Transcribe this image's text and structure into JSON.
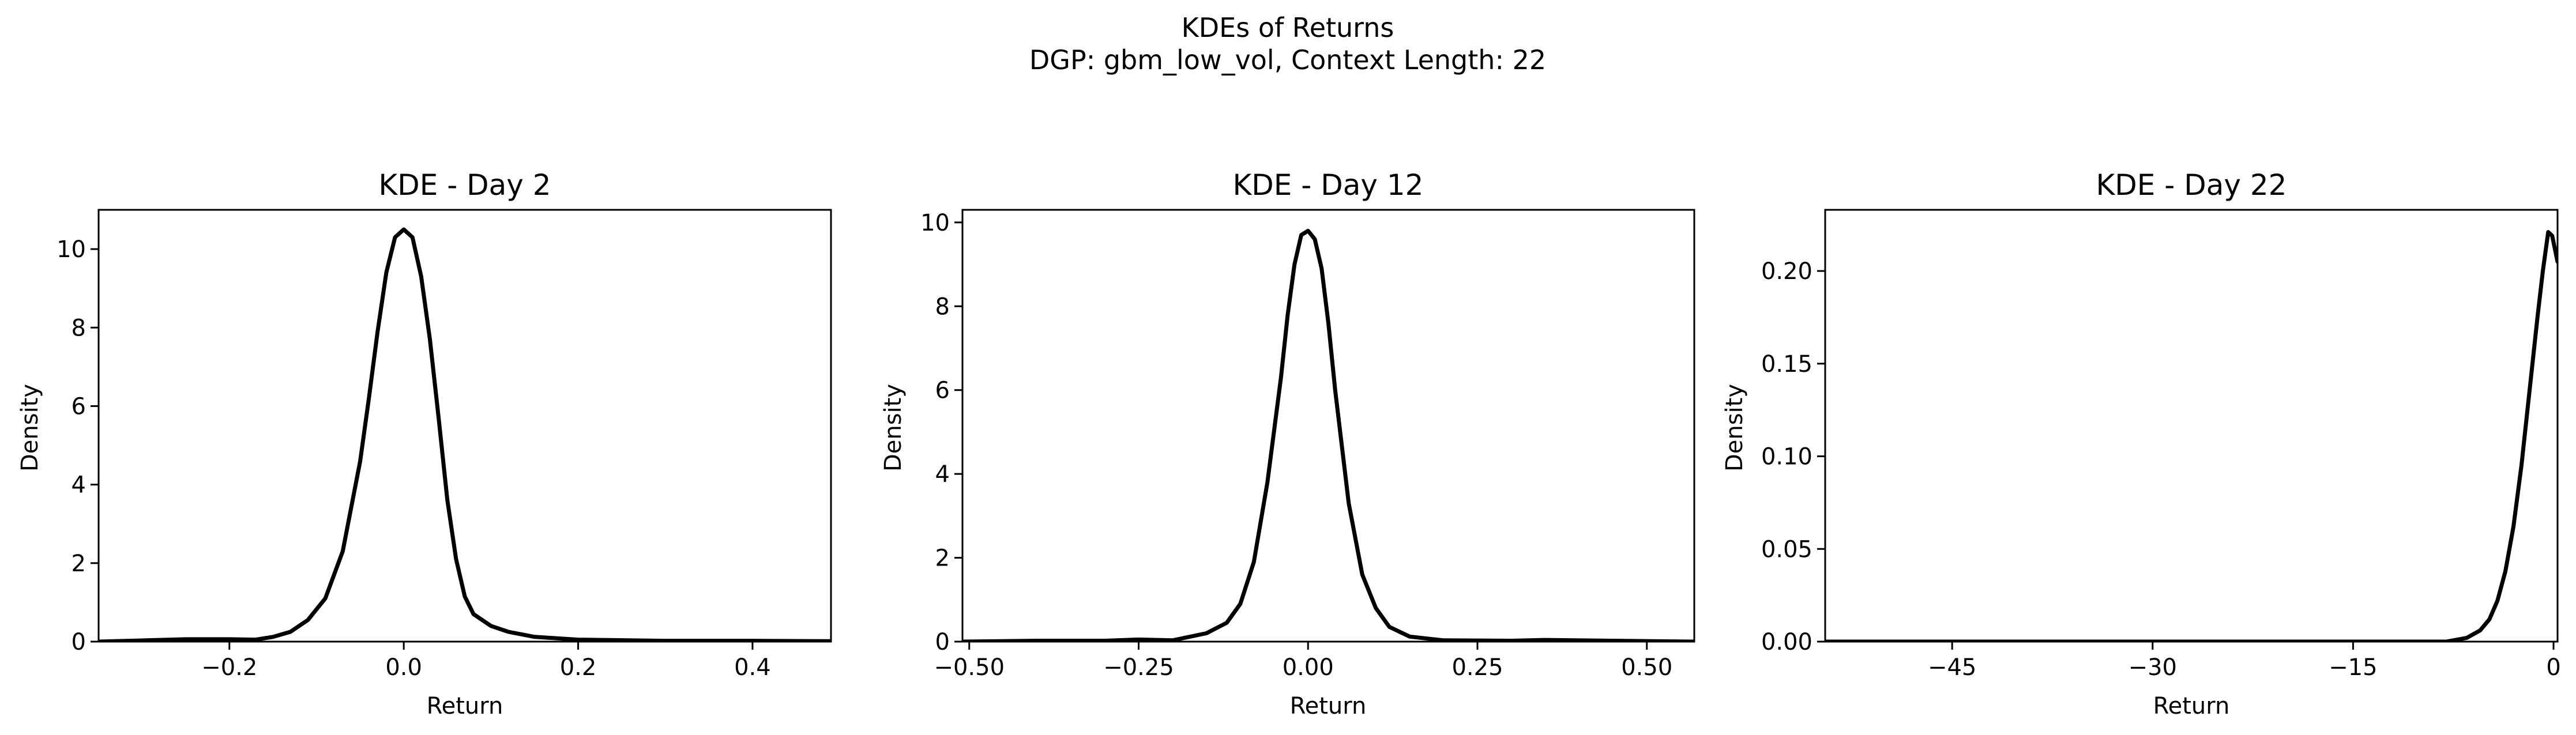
{
  "figure": {
    "title_line1": "KDEs of Returns",
    "title_line2": "DGP: gbm_low_vol, Context Length: 22"
  },
  "chart_data": [
    {
      "type": "line",
      "title": "KDE - Day 2",
      "xlabel": "Return",
      "ylabel": "Density",
      "xlim": [
        -0.35,
        0.49
      ],
      "ylim": [
        0,
        11.0
      ],
      "xticks": [
        -0.2,
        0.0,
        0.2,
        0.4
      ],
      "xtick_labels": [
        "−0.2",
        "0.0",
        "0.2",
        "0.4"
      ],
      "yticks": [
        0,
        2,
        4,
        6,
        8,
        10
      ],
      "ytick_labels": [
        "0",
        "2",
        "4",
        "6",
        "8",
        "10"
      ],
      "grid": false,
      "series": [
        {
          "color": "#000000",
          "x": [
            -0.35,
            -0.3,
            -0.25,
            -0.2,
            -0.17,
            -0.15,
            -0.13,
            -0.11,
            -0.09,
            -0.07,
            -0.05,
            -0.04,
            -0.03,
            -0.02,
            -0.01,
            0.0,
            0.01,
            0.02,
            0.03,
            0.04,
            0.05,
            0.06,
            0.07,
            0.08,
            0.1,
            0.12,
            0.15,
            0.2,
            0.3,
            0.4,
            0.49
          ],
          "y": [
            0.0,
            0.03,
            0.06,
            0.06,
            0.05,
            0.12,
            0.25,
            0.55,
            1.1,
            2.3,
            4.6,
            6.2,
            7.9,
            9.4,
            10.3,
            10.5,
            10.3,
            9.3,
            7.7,
            5.7,
            3.6,
            2.1,
            1.15,
            0.7,
            0.4,
            0.25,
            0.12,
            0.05,
            0.02,
            0.02,
            0.01
          ]
        }
      ]
    },
    {
      "type": "line",
      "title": "KDE - Day 12",
      "xlabel": "Return",
      "ylabel": "Density",
      "xlim": [
        -0.51,
        0.57
      ],
      "ylim": [
        0,
        10.3
      ],
      "xticks": [
        -0.5,
        -0.25,
        0.0,
        0.25,
        0.5
      ],
      "xtick_labels": [
        "−0.50",
        "−0.25",
        "0.00",
        "0.25",
        "0.50"
      ],
      "yticks": [
        0,
        2,
        4,
        6,
        8,
        10
      ],
      "ytick_labels": [
        "0",
        "2",
        "4",
        "6",
        "8",
        "10"
      ],
      "grid": false,
      "series": [
        {
          "color": "#000000",
          "x": [
            -0.51,
            -0.4,
            -0.3,
            -0.25,
            -0.2,
            -0.15,
            -0.12,
            -0.1,
            -0.08,
            -0.06,
            -0.04,
            -0.03,
            -0.02,
            -0.01,
            0.0,
            0.01,
            0.02,
            0.03,
            0.04,
            0.06,
            0.08,
            0.1,
            0.12,
            0.15,
            0.2,
            0.3,
            0.35,
            0.45,
            0.57
          ],
          "y": [
            0.0,
            0.02,
            0.02,
            0.05,
            0.03,
            0.2,
            0.45,
            0.9,
            1.9,
            3.8,
            6.3,
            7.8,
            9.0,
            9.7,
            9.8,
            9.6,
            8.9,
            7.6,
            6.0,
            3.3,
            1.6,
            0.8,
            0.35,
            0.12,
            0.03,
            0.02,
            0.04,
            0.02,
            0.0
          ]
        }
      ]
    },
    {
      "type": "line",
      "title": "KDE - Day 22",
      "xlabel": "Return",
      "ylabel": "Density",
      "xlim": [
        -54.5,
        0.3
      ],
      "ylim": [
        0,
        0.233
      ],
      "xticks": [
        -45,
        -30,
        -15,
        0
      ],
      "xtick_labels": [
        "−45",
        "−30",
        "−15",
        "0"
      ],
      "yticks": [
        0.0,
        0.05,
        0.1,
        0.15,
        0.2
      ],
      "ytick_labels": [
        "0.00",
        "0.05",
        "0.10",
        "0.15",
        "0.20"
      ],
      "grid": false,
      "series": [
        {
          "color": "#000000",
          "x": [
            -54.5,
            -40,
            -20,
            -8,
            -6.5,
            -5.5,
            -4.8,
            -4.2,
            -3.6,
            -3.0,
            -2.4,
            -1.8,
            -1.2,
            -0.8,
            -0.4,
            -0.1,
            0.3
          ],
          "y": [
            0.0,
            0.0,
            0.0,
            0.0,
            0.002,
            0.006,
            0.012,
            0.022,
            0.038,
            0.062,
            0.095,
            0.135,
            0.175,
            0.2,
            0.221,
            0.219,
            0.205
          ]
        }
      ]
    }
  ]
}
